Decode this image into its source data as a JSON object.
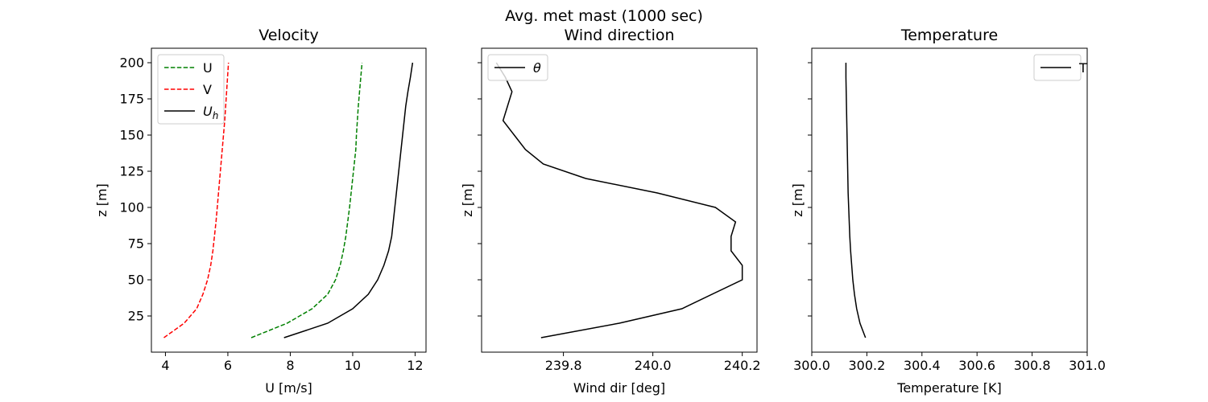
{
  "suptitle": "Avg. met mast (1000 sec)",
  "chart_data": [
    {
      "type": "line",
      "title": "Velocity",
      "xlabel": "U [m/s]",
      "ylabel": "z [m]",
      "xlim": [
        3.55,
        12.35
      ],
      "ylim": [
        0,
        210
      ],
      "xticks": [
        4,
        6,
        8,
        10,
        12
      ],
      "xticklabels": [
        "4",
        "6",
        "8",
        "10",
        "12"
      ],
      "yticks": [
        25,
        50,
        75,
        100,
        125,
        150,
        175,
        200
      ],
      "yticklabels": [
        "25",
        "50",
        "75",
        "100",
        "125",
        "150",
        "175",
        "200"
      ],
      "show_yticklabels": true,
      "grid": false,
      "legend_position": "upper-left",
      "series": [
        {
          "name": "U",
          "color": "#008000",
          "dash": "dashed",
          "points": [
            [
              6.75,
              10
            ],
            [
              7.9,
              20
            ],
            [
              8.7,
              30
            ],
            [
              9.2,
              40
            ],
            [
              9.45,
              50
            ],
            [
              9.6,
              60
            ],
            [
              9.7,
              70
            ],
            [
              9.78,
              80
            ],
            [
              9.84,
              90
            ],
            [
              9.9,
              100
            ],
            [
              9.95,
              110
            ],
            [
              10.0,
              120
            ],
            [
              10.05,
              130
            ],
            [
              10.1,
              140
            ],
            [
              10.12,
              150
            ],
            [
              10.15,
              160
            ],
            [
              10.18,
              170
            ],
            [
              10.22,
              180
            ],
            [
              10.26,
              190
            ],
            [
              10.3,
              200
            ]
          ]
        },
        {
          "name": "V",
          "color": "#ff0000",
          "dash": "dashed",
          "points": [
            [
              3.95,
              10
            ],
            [
              4.6,
              20
            ],
            [
              5.0,
              30
            ],
            [
              5.2,
              40
            ],
            [
              5.35,
              50
            ],
            [
              5.45,
              60
            ],
            [
              5.52,
              70
            ],
            [
              5.57,
              80
            ],
            [
              5.62,
              90
            ],
            [
              5.66,
              100
            ],
            [
              5.7,
              110
            ],
            [
              5.74,
              120
            ],
            [
              5.78,
              130
            ],
            [
              5.82,
              140
            ],
            [
              5.86,
              150
            ],
            [
              5.9,
              160
            ],
            [
              5.93,
              170
            ],
            [
              5.96,
              180
            ],
            [
              5.99,
              190
            ],
            [
              6.02,
              200
            ]
          ]
        },
        {
          "name": "U_h",
          "color": "#000000",
          "dash": "solid",
          "points": [
            [
              7.8,
              10
            ],
            [
              9.2,
              20
            ],
            [
              10.0,
              30
            ],
            [
              10.5,
              40
            ],
            [
              10.8,
              50
            ],
            [
              11.0,
              60
            ],
            [
              11.15,
              70
            ],
            [
              11.25,
              80
            ],
            [
              11.3,
              90
            ],
            [
              11.35,
              100
            ],
            [
              11.4,
              110
            ],
            [
              11.45,
              120
            ],
            [
              11.5,
              130
            ],
            [
              11.55,
              140
            ],
            [
              11.6,
              150
            ],
            [
              11.65,
              160
            ],
            [
              11.7,
              170
            ],
            [
              11.77,
              180
            ],
            [
              11.85,
              190
            ],
            [
              11.92,
              200
            ]
          ]
        }
      ]
    },
    {
      "type": "line",
      "title": "Wind direction",
      "xlabel": "Wind dir [deg]",
      "ylabel": "z [m]",
      "xlim": [
        239.617,
        240.233
      ],
      "ylim": [
        0,
        210
      ],
      "xticks": [
        239.8,
        240.0,
        240.2
      ],
      "xticklabels": [
        "239.8",
        "240.0",
        "240.2"
      ],
      "yticks": [
        25,
        50,
        75,
        100,
        125,
        150,
        175,
        200
      ],
      "yticklabels": [],
      "show_yticklabels": false,
      "grid": false,
      "legend_position": "upper-left",
      "series": [
        {
          "name": "θ",
          "color": "#000000",
          "dash": "solid",
          "points": [
            [
              239.75,
              10
            ],
            [
              239.925,
              20
            ],
            [
              240.065,
              30
            ],
            [
              240.2,
              50
            ],
            [
              240.2,
              60
            ],
            [
              240.175,
              70
            ],
            [
              240.175,
              80
            ],
            [
              240.185,
              90
            ],
            [
              240.14,
              100
            ],
            [
              240.01,
              110
            ],
            [
              239.85,
              120
            ],
            [
              239.755,
              130
            ],
            [
              239.715,
              140
            ],
            [
              239.69,
              150
            ],
            [
              239.665,
              160
            ],
            [
              239.675,
              170
            ],
            [
              239.685,
              180
            ],
            [
              239.67,
              190
            ],
            [
              239.65,
              200
            ]
          ]
        }
      ]
    },
    {
      "type": "line",
      "title": "Temperature",
      "xlabel": "Temperature [K]",
      "ylabel": "z [m]",
      "xlim": [
        300.0,
        301.0
      ],
      "ylim": [
        0,
        210
      ],
      "xticks": [
        300.0,
        300.2,
        300.4,
        300.6,
        300.8,
        301.0
      ],
      "xticklabels": [
        "300.0",
        "300.2",
        "300.4",
        "300.6",
        "300.8",
        "301.0"
      ],
      "yticks": [
        25,
        50,
        75,
        100,
        125,
        150,
        175,
        200
      ],
      "yticklabels": [],
      "show_yticklabels": false,
      "grid": false,
      "legend_position": "upper-right",
      "series": [
        {
          "name": "T",
          "color": "#000000",
          "dash": "solid",
          "points": [
            [
              300.195,
              10
            ],
            [
              300.175,
              20
            ],
            [
              300.163,
              30
            ],
            [
              300.155,
              40
            ],
            [
              300.149,
              50
            ],
            [
              300.145,
              60
            ],
            [
              300.141,
              70
            ],
            [
              300.138,
              80
            ],
            [
              300.136,
              90
            ],
            [
              300.134,
              100
            ],
            [
              300.132,
              110
            ],
            [
              300.131,
              120
            ],
            [
              300.13,
              130
            ],
            [
              300.129,
              140
            ],
            [
              300.128,
              150
            ],
            [
              300.127,
              160
            ],
            [
              300.126,
              170
            ],
            [
              300.125,
              180
            ],
            [
              300.124,
              190
            ],
            [
              300.124,
              200
            ]
          ]
        }
      ]
    }
  ]
}
